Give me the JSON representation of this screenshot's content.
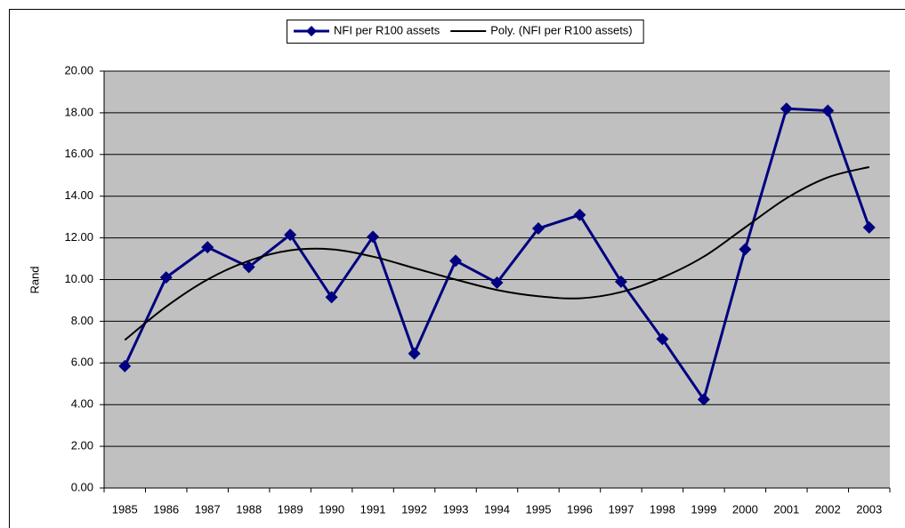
{
  "chart_data": {
    "type": "line",
    "y_label": "Rand",
    "categories": [
      "1985",
      "1986",
      "1987",
      "1988",
      "1989",
      "1990",
      "1991",
      "1992",
      "1993",
      "1994",
      "1995",
      "1996",
      "1997",
      "1998",
      "1999",
      "2000",
      "2001",
      "2002",
      "2003"
    ],
    "series": [
      {
        "name": "NFI per R100 assets",
        "color": "#000080",
        "marker": "diamond",
        "values": [
          5.85,
          10.1,
          11.55,
          10.6,
          12.15,
          9.15,
          12.05,
          6.45,
          10.9,
          9.85,
          12.45,
          13.1,
          9.9,
          7.15,
          4.25,
          11.45,
          18.2,
          18.1,
          12.5
        ]
      },
      {
        "name": "Poly. (NFI per R100 assets)",
        "color": "#000000",
        "marker": "none",
        "smooth": true,
        "values": [
          7.1,
          8.7,
          10.0,
          10.9,
          11.4,
          11.45,
          11.1,
          10.55,
          10.0,
          9.5,
          9.2,
          9.1,
          9.4,
          10.1,
          11.1,
          12.5,
          13.9,
          14.9,
          15.4
        ]
      }
    ],
    "ylim": [
      0,
      20
    ],
    "yticks": [
      {
        "value": 0,
        "label": "0.00"
      },
      {
        "value": 2,
        "label": "2.00"
      },
      {
        "value": 4,
        "label": "4.00"
      },
      {
        "value": 6,
        "label": "6.00"
      },
      {
        "value": 8,
        "label": "8.00"
      },
      {
        "value": 10,
        "label": "10.00"
      },
      {
        "value": 12,
        "label": "12.00"
      },
      {
        "value": 14,
        "label": "14.00"
      },
      {
        "value": 16,
        "label": "16.00"
      },
      {
        "value": 18,
        "label": "18.00"
      },
      {
        "value": 20,
        "label": "20.00"
      }
    ],
    "grid": true,
    "plot_background": "#c0c0c0",
    "legend": "top"
  }
}
